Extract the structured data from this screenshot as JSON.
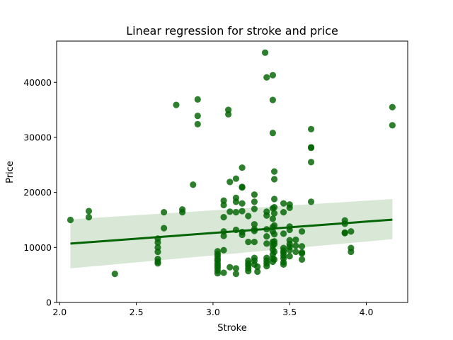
{
  "chart_data": {
    "type": "scatter",
    "title": "Linear regression for stroke and price",
    "xlabel": "Stroke",
    "ylabel": "Price",
    "xlim": [
      1.98,
      4.27
    ],
    "ylim": [
      0,
      47500
    ],
    "x_ticks": [
      2.0,
      2.5,
      3.0,
      3.5,
      4.0
    ],
    "x_tick_labels": [
      "2.0",
      "2.5",
      "3.0",
      "3.5",
      "4.0"
    ],
    "y_ticks": [
      0,
      10000,
      20000,
      30000,
      40000
    ],
    "y_tick_labels": [
      "0",
      "10000",
      "20000",
      "30000",
      "40000"
    ],
    "grid": false,
    "colors": {
      "points": "#006400",
      "line": "#006400",
      "band": "#d8e7d6"
    },
    "regression": {
      "x": [
        2.07,
        4.17
      ],
      "y": [
        10700,
        15050
      ],
      "ci_lower": [
        6200,
        11500
      ],
      "ci_upper": [
        15100,
        18800
      ]
    },
    "points": [
      [
        2.07,
        15000
      ],
      [
        2.19,
        16600
      ],
      [
        2.19,
        15500
      ],
      [
        2.36,
        5200
      ],
      [
        2.64,
        11600
      ],
      [
        2.64,
        10900
      ],
      [
        2.64,
        10000
      ],
      [
        2.64,
        9200
      ],
      [
        2.64,
        7900
      ],
      [
        2.64,
        7400
      ],
      [
        2.64,
        7100
      ],
      [
        2.68,
        16400
      ],
      [
        2.68,
        13500
      ],
      [
        2.76,
        35900
      ],
      [
        2.8,
        16900
      ],
      [
        2.8,
        16400
      ],
      [
        2.87,
        21400
      ],
      [
        2.9,
        36900
      ],
      [
        2.9,
        33900
      ],
      [
        2.9,
        32400
      ],
      [
        3.03,
        9300
      ],
      [
        3.03,
        8800
      ],
      [
        3.03,
        8400
      ],
      [
        3.03,
        7900
      ],
      [
        3.03,
        7600
      ],
      [
        3.03,
        7100
      ],
      [
        3.03,
        6700
      ],
      [
        3.03,
        6300
      ],
      [
        3.03,
        5800
      ],
      [
        3.03,
        5300
      ],
      [
        3.07,
        18500
      ],
      [
        3.07,
        17700
      ],
      [
        3.07,
        15500
      ],
      [
        3.07,
        12900
      ],
      [
        3.07,
        12100
      ],
      [
        3.07,
        9500
      ],
      [
        3.07,
        5400
      ],
      [
        3.1,
        35000
      ],
      [
        3.1,
        34200
      ],
      [
        3.11,
        21900
      ],
      [
        3.11,
        16500
      ],
      [
        3.11,
        6400
      ],
      [
        3.15,
        22500
      ],
      [
        3.15,
        19000
      ],
      [
        3.15,
        18300
      ],
      [
        3.15,
        16400
      ],
      [
        3.15,
        13200
      ],
      [
        3.15,
        6200
      ],
      [
        3.15,
        5200
      ],
      [
        3.19,
        24500
      ],
      [
        3.19,
        21000
      ],
      [
        3.19,
        20900
      ],
      [
        3.19,
        18000
      ],
      [
        3.19,
        16600
      ],
      [
        3.19,
        12800
      ],
      [
        3.19,
        12300
      ],
      [
        3.23,
        15700
      ],
      [
        3.23,
        11000
      ],
      [
        3.23,
        7600
      ],
      [
        3.23,
        7100
      ],
      [
        3.23,
        6700
      ],
      [
        3.23,
        6200
      ],
      [
        3.23,
        5700
      ],
      [
        3.27,
        19600
      ],
      [
        3.27,
        18300
      ],
      [
        3.27,
        17000
      ],
      [
        3.27,
        14200
      ],
      [
        3.27,
        13300
      ],
      [
        3.27,
        13000
      ],
      [
        3.27,
        11000
      ],
      [
        3.27,
        8100
      ],
      [
        3.27,
        7600
      ],
      [
        3.27,
        6900
      ],
      [
        3.29,
        6500
      ],
      [
        3.29,
        5600
      ],
      [
        3.34,
        45400
      ],
      [
        3.35,
        40900
      ],
      [
        3.35,
        16500
      ],
      [
        3.35,
        15800
      ],
      [
        3.35,
        13300
      ],
      [
        3.35,
        12000
      ],
      [
        3.35,
        10700
      ],
      [
        3.35,
        8100
      ],
      [
        3.35,
        7600
      ],
      [
        3.35,
        7100
      ],
      [
        3.35,
        6600
      ],
      [
        3.39,
        41300
      ],
      [
        3.39,
        36800
      ],
      [
        3.39,
        30800
      ],
      [
        3.39,
        17100
      ],
      [
        3.39,
        15200
      ],
      [
        3.39,
        13700
      ],
      [
        3.39,
        12900
      ],
      [
        3.39,
        11000
      ],
      [
        3.39,
        10300
      ],
      [
        3.39,
        9600
      ],
      [
        3.39,
        8700
      ],
      [
        3.39,
        8000
      ],
      [
        3.39,
        7400
      ],
      [
        3.4,
        23800
      ],
      [
        3.4,
        22400
      ],
      [
        3.4,
        18800
      ],
      [
        3.4,
        17300
      ],
      [
        3.4,
        16200
      ],
      [
        3.4,
        14000
      ],
      [
        3.4,
        12400
      ],
      [
        3.4,
        11100
      ],
      [
        3.4,
        10600
      ],
      [
        3.4,
        9200
      ],
      [
        3.4,
        7800
      ],
      [
        3.46,
        18000
      ],
      [
        3.46,
        16400
      ],
      [
        3.46,
        12500
      ],
      [
        3.46,
        9900
      ],
      [
        3.46,
        9400
      ],
      [
        3.46,
        9000
      ],
      [
        3.46,
        8500
      ],
      [
        3.46,
        8000
      ],
      [
        3.46,
        7300
      ],
      [
        3.46,
        6900
      ],
      [
        3.5,
        17800
      ],
      [
        3.5,
        17200
      ],
      [
        3.5,
        13800
      ],
      [
        3.5,
        13200
      ],
      [
        3.5,
        11300
      ],
      [
        3.5,
        10600
      ],
      [
        3.5,
        10100
      ],
      [
        3.5,
        9500
      ],
      [
        3.5,
        8400
      ],
      [
        3.54,
        11400
      ],
      [
        3.54,
        10300
      ],
      [
        3.54,
        9200
      ],
      [
        3.58,
        12900
      ],
      [
        3.58,
        10200
      ],
      [
        3.58,
        9100
      ],
      [
        3.58,
        8900
      ],
      [
        3.58,
        7800
      ],
      [
        3.64,
        31500
      ],
      [
        3.64,
        28200
      ],
      [
        3.64,
        28100
      ],
      [
        3.64,
        25500
      ],
      [
        3.64,
        18300
      ],
      [
        3.86,
        14900
      ],
      [
        3.86,
        14300
      ],
      [
        3.86,
        12700
      ],
      [
        3.86,
        12600
      ],
      [
        3.9,
        12900
      ],
      [
        3.9,
        9900
      ],
      [
        3.9,
        9200
      ],
      [
        4.17,
        35500
      ],
      [
        4.17,
        32200
      ]
    ]
  }
}
